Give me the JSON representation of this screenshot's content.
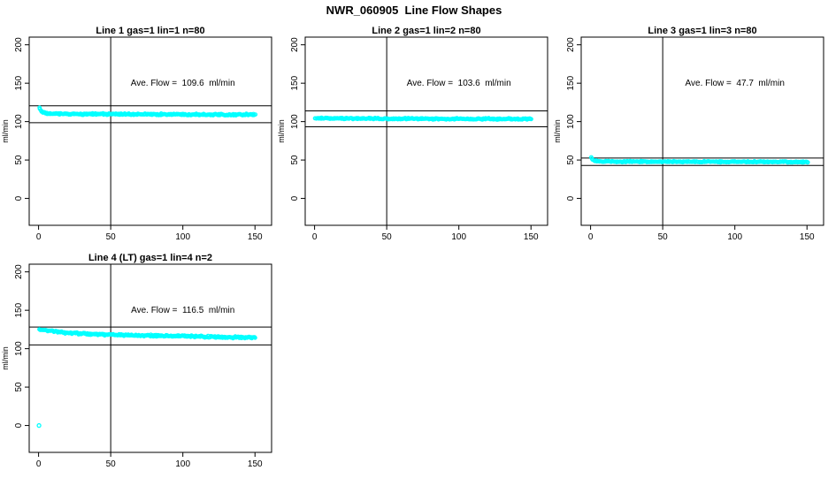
{
  "page": {
    "title": "NWR_060905  Line Flow Shapes"
  },
  "chart_data": {
    "type": "scatter",
    "title": "NWR_060905  Line Flow Shapes",
    "xlabel": "",
    "ylabel": "ml/min",
    "x_ticks": [
      0,
      50,
      100,
      150
    ],
    "y_ticks": [
      0,
      50,
      100,
      150,
      200
    ],
    "xlim": [
      -6.5,
      161.5
    ],
    "ylim": [
      -35,
      210
    ],
    "grid": false,
    "legend": "none",
    "point_color": "#00ffff",
    "line_color": "#000000",
    "vline_x": 50,
    "annotation_pos": {
      "x": 100,
      "y": 150
    },
    "panels": [
      {
        "title": "Line 1 gas=1 lin=1 n=80",
        "annotation": "Ave. Flow =  109.6  ml/min",
        "avg_flow_ml_min": 109.6,
        "n": 80,
        "hlines": [
          120.6,
          98.6
        ],
        "x_start": 0.5,
        "x_end": 150.5,
        "band_halfwidth": 1.3,
        "profile": [
          [
            0.5,
            118.5
          ],
          [
            1.5,
            115
          ],
          [
            2.5,
            112.5
          ],
          [
            4,
            111
          ],
          [
            7,
            110.3
          ],
          [
            12,
            110
          ],
          [
            30,
            109.8
          ],
          [
            60,
            109.6
          ],
          [
            90,
            109.4
          ],
          [
            120,
            109.2
          ],
          [
            150.5,
            109.0
          ]
        ],
        "outliers": []
      },
      {
        "title": "Line 2 gas=1 lin=2 n=80",
        "annotation": "Ave. Flow =  103.6  ml/min",
        "avg_flow_ml_min": 103.6,
        "n": 80,
        "hlines": [
          114.0,
          93.2
        ],
        "x_start": 0.5,
        "x_end": 150.5,
        "band_halfwidth": 1.2,
        "profile": [
          [
            0.5,
            104.6
          ],
          [
            10,
            104.2
          ],
          [
            40,
            103.9
          ],
          [
            80,
            103.6
          ],
          [
            120,
            103.3
          ],
          [
            150.5,
            103.1
          ]
        ],
        "outliers": []
      },
      {
        "title": "Line 3 gas=1 lin=3 n=80",
        "annotation": "Ave. Flow =  47.7  ml/min",
        "avg_flow_ml_min": 47.7,
        "n": 80,
        "hlines": [
          52.5,
          42.9
        ],
        "x_start": 0.5,
        "x_end": 151,
        "band_halfwidth": 1.0,
        "profile": [
          [
            0.5,
            53.5
          ],
          [
            1.5,
            51
          ],
          [
            2.5,
            49.5
          ],
          [
            4,
            48.6
          ],
          [
            7,
            48.2
          ],
          [
            15,
            48
          ],
          [
            60,
            47.8
          ],
          [
            100,
            47.6
          ],
          [
            151,
            47.4
          ]
        ],
        "outliers": []
      },
      {
        "title": "Line 4 (LT) gas=1 lin=4 n=2",
        "annotation": "Ave. Flow =  116.5  ml/min",
        "avg_flow_ml_min": 116.5,
        "n": 2,
        "hlines": [
          128.2,
          104.9
        ],
        "x_start": 0.5,
        "x_end": 150.5,
        "band_halfwidth": 1.5,
        "profile": [
          [
            0.5,
            124.5
          ],
          [
            5,
            123.6
          ],
          [
            10,
            122.8
          ],
          [
            15,
            121.8
          ],
          [
            20,
            120.8
          ],
          [
            30,
            119.6
          ],
          [
            40,
            118.7
          ],
          [
            50,
            118.2
          ],
          [
            70,
            117.3
          ],
          [
            90,
            116.5
          ],
          [
            110,
            115.9
          ],
          [
            130,
            115.1
          ],
          [
            150.5,
            114.1
          ]
        ],
        "outliers": [
          [
            0.3,
            0
          ]
        ]
      }
    ]
  }
}
